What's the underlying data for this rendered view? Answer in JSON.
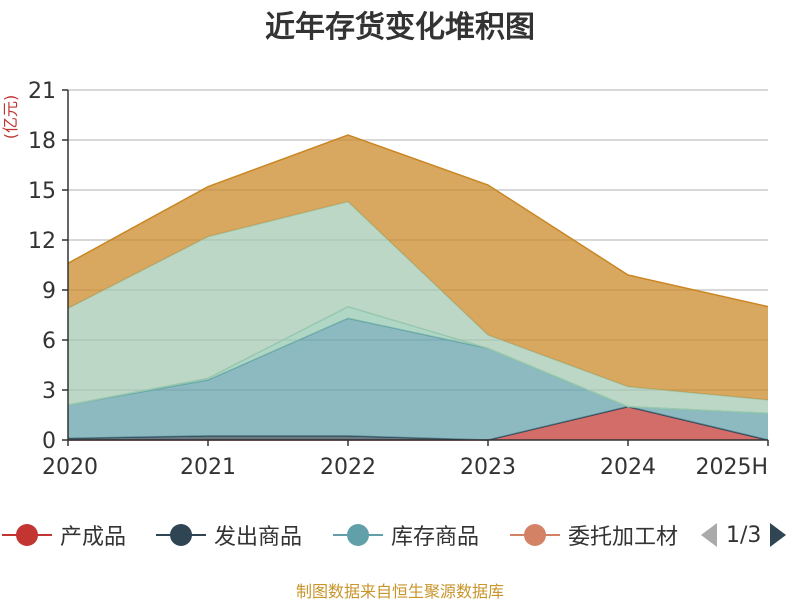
{
  "title": "近年存货变化堆积图",
  "unit": "(亿元)",
  "footer": "制图数据来自恒生聚源数据库",
  "pager": {
    "page": "1/3"
  },
  "chart_data": {
    "type": "area",
    "stacked": true,
    "title": "近年存货变化堆积图",
    "ylabel": "(亿元)",
    "ylim": [
      0,
      21
    ],
    "yticks": [
      0,
      3,
      6,
      9,
      12,
      15,
      18,
      21
    ],
    "grid": true,
    "legend_position": "bottom",
    "categories": [
      "2020",
      "2021",
      "2022",
      "2023",
      "2024",
      "2025H"
    ],
    "series": [
      {
        "name": "产成品",
        "color": "#c23531",
        "values": [
          0,
          0,
          0,
          0,
          2.0,
          0
        ]
      },
      {
        "name": "发出商品",
        "color": "#2f4554",
        "values": [
          0.1,
          0.25,
          0.25,
          0,
          0,
          0
        ]
      },
      {
        "name": "库存商品",
        "color": "#61a0a8",
        "values": [
          2.0,
          3.35,
          7.05,
          5.5,
          0,
          1.6
        ]
      },
      {
        "name": "委托加工材",
        "color": "#d48265",
        "values": [
          0,
          0,
          0,
          0,
          0,
          0
        ]
      },
      {
        "name": "",
        "color": "#91c7ae",
        "values": [
          0,
          0.1,
          0.7,
          0,
          0,
          0
        ]
      },
      {
        "name": "",
        "color": "#a3c8b0",
        "values": [
          5.8,
          8.5,
          6.3,
          0.8,
          1.2,
          0.8
        ]
      },
      {
        "name": "",
        "color": "#ca8622",
        "values": [
          2.7,
          3.0,
          4.0,
          9.0,
          6.7,
          5.6
        ]
      }
    ]
  }
}
